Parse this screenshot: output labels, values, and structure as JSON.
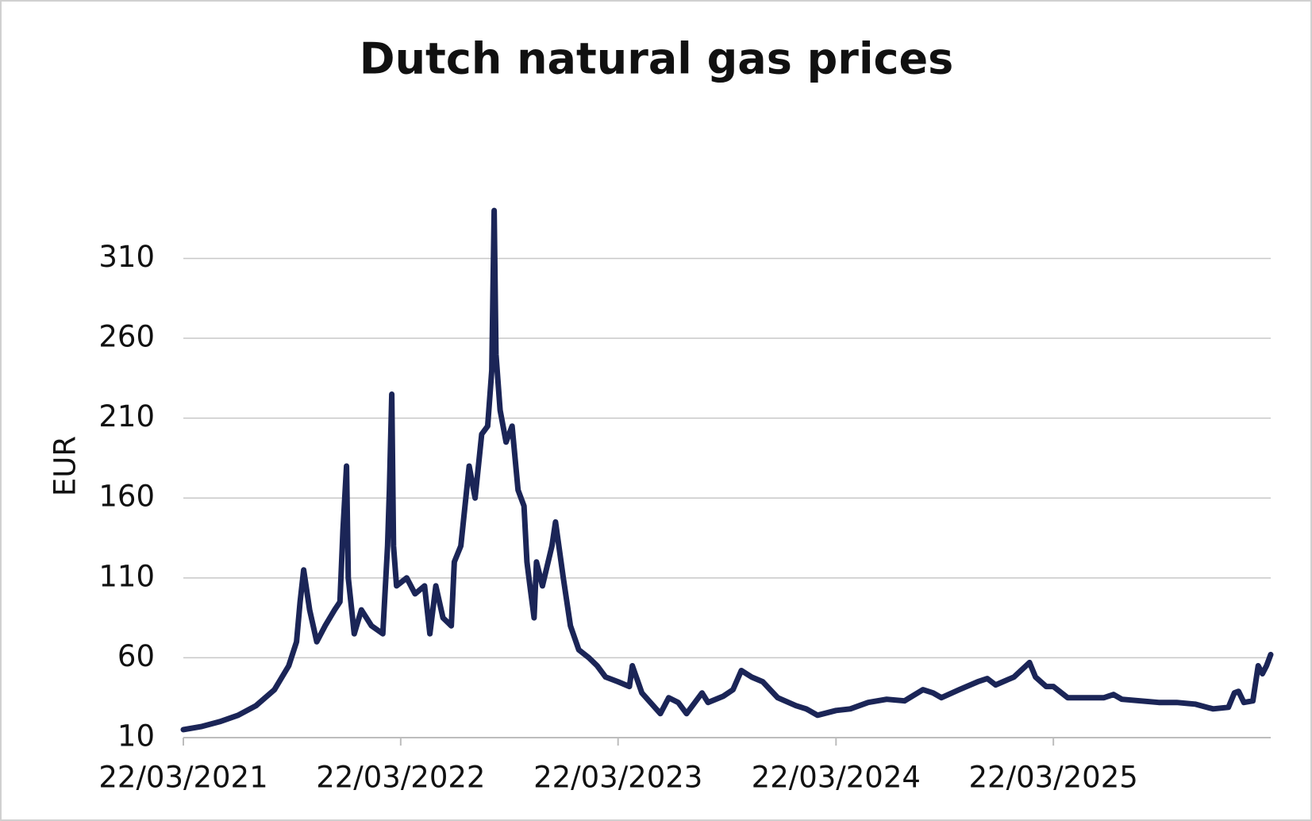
{
  "chart_data": {
    "type": "line",
    "title": "Dutch natural gas prices",
    "y_label": "EUR",
    "x": [
      "22/03/2021",
      "22/04/2021",
      "22/05/2021",
      "22/06/2021",
      "22/07/2021",
      "22/08/2021",
      "15/09/2021",
      "28/09/2021",
      "04/10/2021",
      "10/10/2021",
      "20/10/2021",
      "01/11/2021",
      "15/11/2021",
      "01/12/2021",
      "10/12/2021",
      "15/12/2021",
      "21/12/2021",
      "24/12/2021",
      "03/01/2022",
      "15/01/2022",
      "01/02/2022",
      "20/02/2022",
      "28/02/2022",
      "03/03/2022",
      "07/03/2022",
      "10/03/2022",
      "15/03/2022",
      "01/04/2022",
      "15/04/2022",
      "01/05/2022",
      "10/05/2022",
      "20/05/2022",
      "01/06/2022",
      "15/06/2022",
      "20/06/2022",
      "01/07/2022",
      "15/07/2022",
      "25/07/2022",
      "05/08/2022",
      "15/08/2022",
      "22/08/2022",
      "26/08/2022",
      "29/08/2022",
      "05/09/2022",
      "15/09/2022",
      "25/09/2022",
      "05/10/2022",
      "15/10/2022",
      "20/10/2022",
      "25/10/2022",
      "01/11/2022",
      "05/11/2022",
      "15/11/2022",
      "01/12/2022",
      "07/12/2022",
      "20/12/2022",
      "01/01/2023",
      "15/01/2023",
      "01/02/2023",
      "15/02/2023",
      "01/03/2023",
      "22/03/2023",
      "10/04/2023",
      "15/04/2023",
      "01/05/2023",
      "01/06/2023",
      "15/06/2023",
      "01/07/2023",
      "15/07/2023",
      "10/08/2023",
      "20/08/2023",
      "15/09/2023",
      "01/10/2023",
      "15/10/2023",
      "01/11/2023",
      "20/11/2023",
      "15/12/2023",
      "15/01/2024",
      "01/02/2024",
      "20/02/2024",
      "22/03/2024",
      "15/04/2024",
      "15/05/2024",
      "15/06/2024",
      "15/07/2024",
      "15/08/2024",
      "01/09/2024",
      "15/09/2024",
      "15/10/2024",
      "15/11/2024",
      "01/12/2024",
      "15/12/2024",
      "15/01/2025",
      "10/02/2025",
      "20/02/2025",
      "10/03/2025",
      "22/03/2025",
      "15/04/2025",
      "15/05/2025",
      "15/06/2025",
      "01/07/2025",
      "15/07/2025",
      "15/08/2025",
      "15/09/2025",
      "15/10/2025",
      "15/11/2025",
      "15/12/2025",
      "10/01/2026",
      "20/01/2026",
      "27/01/2026",
      "05/02/2026",
      "20/02/2026",
      "01/03/2026",
      "08/03/2026",
      "15/03/2026",
      "22/03/2026"
    ],
    "series": [
      {
        "name": "EUR",
        "color": "#1b2557",
        "values": [
          15,
          17,
          20,
          24,
          30,
          40,
          55,
          70,
          95,
          115,
          90,
          70,
          80,
          90,
          95,
          140,
          180,
          110,
          75,
          90,
          80,
          75,
          130,
          165,
          225,
          130,
          105,
          110,
          100,
          105,
          75,
          105,
          85,
          80,
          120,
          130,
          180,
          160,
          200,
          205,
          240,
          340,
          250,
          215,
          195,
          205,
          165,
          155,
          120,
          105,
          85,
          120,
          105,
          130,
          145,
          110,
          80,
          65,
          60,
          55,
          48,
          45,
          42,
          55,
          38,
          25,
          35,
          32,
          25,
          38,
          32,
          36,
          40,
          52,
          48,
          45,
          35,
          30,
          28,
          24,
          27,
          28,
          32,
          34,
          33,
          40,
          38,
          35,
          40,
          45,
          47,
          43,
          48,
          57,
          48,
          42,
          42,
          35,
          35,
          35,
          37,
          34,
          33,
          32,
          32,
          31,
          28,
          29,
          38,
          39,
          32,
          33,
          55,
          50,
          55,
          62
        ]
      }
    ],
    "xlim": [
      "22/03/2021",
      "22/03/2026"
    ],
    "xticks": [
      "22/03/2021",
      "22/03/2022",
      "22/03/2023",
      "22/03/2024",
      "22/03/2025"
    ],
    "ylim": [
      10,
      350
    ],
    "yticks": [
      10,
      60,
      110,
      160,
      210,
      260,
      310
    ],
    "grid": true
  }
}
